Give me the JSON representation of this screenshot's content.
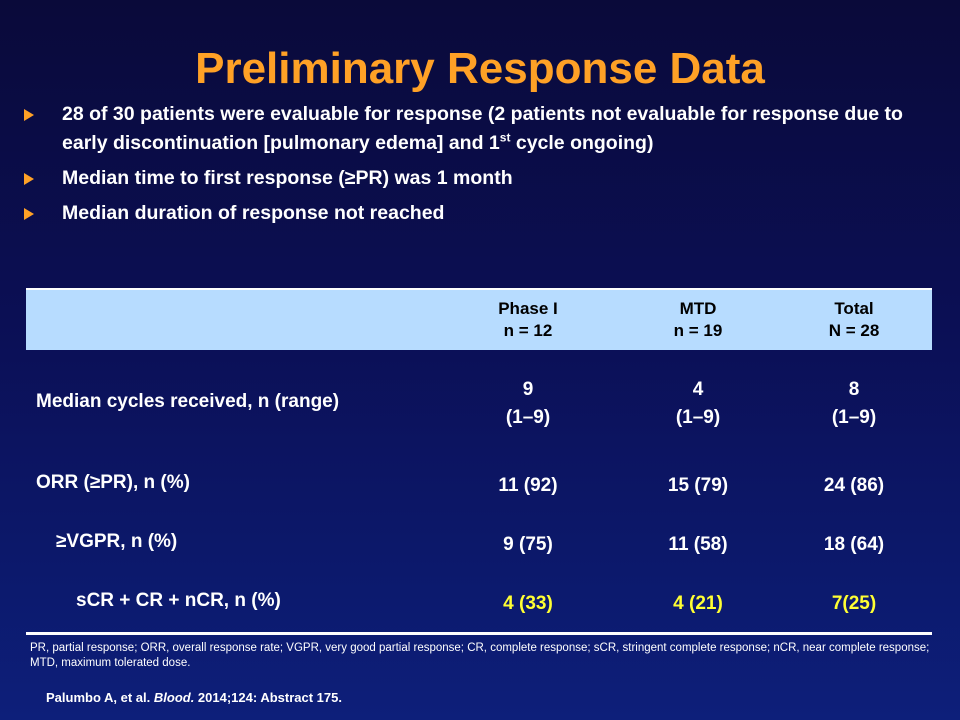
{
  "title": "Preliminary Response Data",
  "bullets": {
    "b1_text": "28 of 30 patients were evaluable for response (2 patients not evaluable for response due to early discontinuation [pulmonary edema] and 1",
    "b1_sup": "st",
    "b1_tail": " cycle ongoing)",
    "b2": "Median time to first response (≥PR) was 1 month",
    "b3": "Median duration of response not reached"
  },
  "table": {
    "headers": [
      {
        "line1": "Phase I",
        "line2": "n = 12"
      },
      {
        "line1": "MTD",
        "line2": "n = 19"
      },
      {
        "line1": "Total",
        "line2": "N = 28"
      }
    ],
    "rows": [
      {
        "label": "Median cycles received, n (range)",
        "values": [
          [
            "9",
            "(1–9)"
          ],
          [
            "4",
            "(1–9)"
          ],
          [
            "8",
            "(1–9)"
          ]
        ]
      },
      {
        "label": "ORR (≥PR), n (%)",
        "values": [
          "11 (92)",
          "15 (79)",
          "24 (86)"
        ]
      },
      {
        "label": "≥VGPR, n (%)",
        "values": [
          "9 (75)",
          "11 (58)",
          "18 (64)"
        ]
      },
      {
        "label": "sCR + CR + nCR, n (%)",
        "values": [
          "4 (33)",
          "4 (21)",
          "7(25)"
        ]
      }
    ]
  },
  "footnote": "PR, partial response; ORR, overall response rate; VGPR, very good partial response; CR, complete response; sCR, stringent complete response; nCR, near complete response; MTD, maximum  tolerated dose.",
  "citation": {
    "authors": "Palumbo A,  et al. ",
    "journal": "Blood.",
    "details": " 2014;124: Abstract  175."
  },
  "colors": {
    "title": "#ffa126",
    "header_bg": "#b7dcff",
    "highlight": "#ffff33"
  }
}
